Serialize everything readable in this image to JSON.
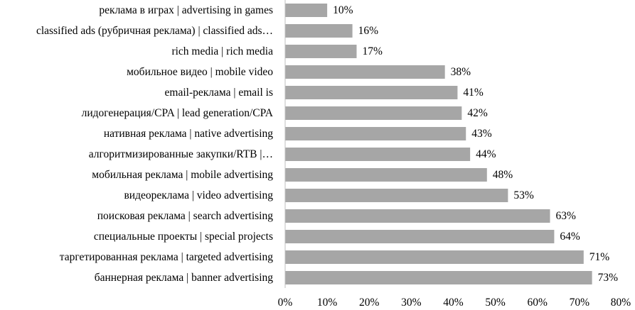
{
  "chart_data": {
    "type": "bar",
    "orientation": "horizontal",
    "categories": [
      "реклама в играх | advertising in games",
      "classified ads (рубричная реклама) | classified ads…",
      "rich media | rich media",
      "мобильное видео | mobile video",
      "email-реклама | email is",
      "лидогенерация/CPA | lead generation/CPA",
      "нативная реклама | native advertising",
      "алгоритмизированные закупки/RTB |…",
      "мобильная реклама | mobile advertising",
      "видеореклама | video advertising",
      "поисковая реклама | search advertising",
      "специальные проекты | special projects",
      "таргетированная реклама | targeted advertising",
      "баннерная реклама | banner advertising"
    ],
    "values": [
      10,
      16,
      17,
      38,
      41,
      42,
      43,
      44,
      48,
      53,
      63,
      64,
      71,
      73
    ],
    "data_labels": [
      "10%",
      "16%",
      "17%",
      "38%",
      "41%",
      "42%",
      "43%",
      "44%",
      "48%",
      "53%",
      "63%",
      "64%",
      "71%",
      "73%"
    ],
    "xlim": [
      0,
      80
    ],
    "xticks": [
      0,
      10,
      20,
      30,
      40,
      50,
      60,
      70,
      80
    ],
    "xtick_labels": [
      "0%",
      "10%",
      "20%",
      "30%",
      "40%",
      "50%",
      "60%",
      "70%",
      "80%"
    ],
    "bar_color": "#a6a6a6",
    "axis_color": "#bfbfbf",
    "grid": false,
    "legend": "none",
    "title": "",
    "xlabel": "",
    "ylabel": ""
  }
}
